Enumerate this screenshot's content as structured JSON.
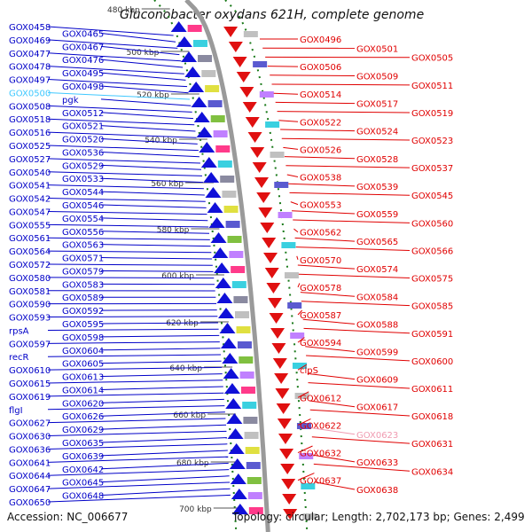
{
  "title": "Gluconobacter oxydans 621H, complete genome",
  "accession": "Accession: NC_006677",
  "summary": "Topology: circular; Length: 2,702,173 bp; Genes: 2,499",
  "colors": {
    "left": "#0000c8",
    "right": "#e00000",
    "left_highlight": "#3fc8ff",
    "right_highlight": "#f09ab0",
    "ticks": "#555555"
  },
  "scale_ticks": [
    "480 kbp",
    "500 kbp",
    "520 kbp",
    "540 kbp",
    "560 kbp",
    "580 kbp",
    "600 kbp",
    "620 kbp",
    "640 kbp",
    "660 kbp",
    "680 kbp",
    "700 kbp"
  ],
  "left_labels": [
    "GOX0458",
    "GOX0465",
    "GOX0469",
    "GOX0467",
    "GOX0477",
    "GOX0476",
    "GOX0478",
    "GOX0495",
    "GOX0497",
    "GOX0498",
    "GOX0500",
    "pgk",
    "GOX0508",
    "GOX0512",
    "GOX0518",
    "GOX0521",
    "GOX0516",
    "GOX0520",
    "GOX0525",
    "GOX0536",
    "GOX0527",
    "GOX0529",
    "GOX0540",
    "GOX0533",
    "GOX0541",
    "GOX0544",
    "GOX0542",
    "GOX0546",
    "GOX0547",
    "GOX0554",
    "GOX0555",
    "GOX0556",
    "GOX0561",
    "GOX0563",
    "GOX0564",
    "GOX0571",
    "GOX0572",
    "GOX0579",
    "GOX0580",
    "GOX0583",
    "GOX0581",
    "GOX0589",
    "GOX0590",
    "GOX0592",
    "GOX0593",
    "GOX0595",
    "rpsA",
    "GOX0598",
    "GOX0597",
    "GOX0604",
    "recR",
    "GOX0605",
    "GOX0610",
    "GOX0613",
    "GOX0615",
    "GOX0614",
    "GOX0619",
    "GOX0620",
    "flgI",
    "GOX0626",
    "GOX0627",
    "GOX0629",
    "GOX0630",
    "GOX0635",
    "GOX0636",
    "GOX0639",
    "GOX0641",
    "GOX0642",
    "GOX0644",
    "GOX0645",
    "GOX0647",
    "GOX0648",
    "GOX0650"
  ],
  "right_labels": [
    "GOX0496",
    "GOX0501",
    "GOX0505",
    "GOX0506",
    "GOX0509",
    "GOX0511",
    "GOX0514",
    "GOX0517",
    "GOX0519",
    "GOX0522",
    "GOX0524",
    "GOX0523",
    "GOX0526",
    "GOX0528",
    "GOX0537",
    "GOX0538",
    "GOX0539",
    "GOX0545",
    "GOX0553",
    "GOX0559",
    "GOX0560",
    "GOX0562",
    "GOX0565",
    "GOX0566",
    "GOX0570",
    "GOX0574",
    "GOX0575",
    "GOX0578",
    "GOX0584",
    "GOX0585",
    "GOX0587",
    "GOX0588",
    "GOX0591",
    "GOX0594",
    "GOX0599",
    "GOX0600",
    "clpS",
    "GOX0609",
    "GOX0611",
    "GOX0612",
    "GOX0617",
    "GOX0618",
    "GOX0622",
    "GOX0623",
    "GOX0631",
    "GOX0632",
    "GOX0633",
    "GOX0634",
    "GOX0637",
    "GOX0638"
  ]
}
